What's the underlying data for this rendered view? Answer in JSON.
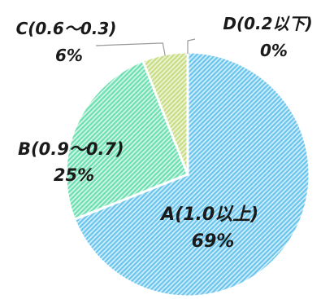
{
  "chart_data": {
    "type": "pie",
    "slices": [
      {
        "category": "A",
        "range": "1.0以上",
        "value": 69,
        "value_label": "69%",
        "color": "#6cc6ee"
      },
      {
        "category": "B",
        "range": "0.9〜0.7",
        "value": 25,
        "value_label": "25%",
        "color": "#6fe0b2"
      },
      {
        "category": "C",
        "range": "0.6〜0.3",
        "value": 6,
        "value_label": "6%",
        "color": "#c9dd84"
      },
      {
        "category": "D",
        "range": "0.2以下",
        "value": 0,
        "value_label": "0%",
        "color": "#9fd0e0"
      }
    ],
    "start_angle": "12 o'clock",
    "direction": "clockwise",
    "hatched_fill": true,
    "legend": "none"
  }
}
